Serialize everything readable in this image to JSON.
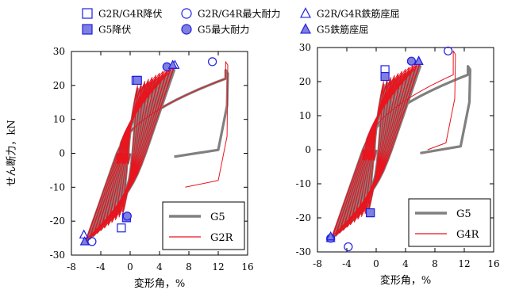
{
  "legend": {
    "items": [
      {
        "label": "G2R/G4R降伏",
        "marker": "square",
        "filled": false
      },
      {
        "label": "G2R/G4R最大耐力",
        "marker": "circle",
        "filled": false
      },
      {
        "label": "G2R/G4R鉄筋座屈",
        "marker": "triangle",
        "filled": false
      },
      {
        "label": "G5降伏",
        "marker": "square",
        "filled": true
      },
      {
        "label": "G5最大耐力",
        "marker": "circle",
        "filled": true
      },
      {
        "label": "G5鉄筋座屈",
        "marker": "triangle",
        "filled": true
      }
    ],
    "marker_color": "#1f1fe6",
    "marker_fill": "#7f7fe0"
  },
  "colors": {
    "G5": "#808080",
    "red": "#e8141e",
    "marker": "#1f1fe6"
  },
  "chart_data": [
    {
      "type": "line",
      "title": "",
      "xlabel": "変形角，%",
      "ylabel": "せん断力，kN",
      "xlim": [
        -8,
        16
      ],
      "ylim": [
        -30,
        30
      ],
      "xticks": [
        -8,
        -4,
        0,
        4,
        8,
        12,
        16
      ],
      "yticks": [
        -30,
        -20,
        -10,
        0,
        10,
        20,
        30
      ],
      "grid": false,
      "legend_position": "bottom-right",
      "series": [
        {
          "name": "G5",
          "color": "#808080",
          "amplitudes": [
            1,
            1.5,
            2,
            2.5,
            3,
            3.5,
            4,
            4.5,
            5,
            5.5,
            6
          ],
          "final_peak": [
            13,
            24.5
          ],
          "residual": [
            6,
            -1
          ]
        },
        {
          "name": "G2R",
          "color": "#e8141e",
          "amplitudes": [
            1,
            1.5,
            2,
            2.5,
            3,
            3.5,
            4,
            4.5,
            5,
            5.5,
            6
          ],
          "final_peak": [
            13,
            27
          ],
          "residual": [
            7.5,
            -10
          ]
        }
      ],
      "markers": [
        {
          "series": "G2R/G4R",
          "event": "降伏",
          "x": 0.8,
          "y": 21.5
        },
        {
          "series": "G2R/G4R",
          "event": "降伏",
          "x": -1.2,
          "y": -22
        },
        {
          "series": "G2R/G4R",
          "event": "最大耐力",
          "x": 11.2,
          "y": 27
        },
        {
          "series": "G2R/G4R",
          "event": "最大耐力",
          "x": -5.2,
          "y": -26
        },
        {
          "series": "G2R/G4R",
          "event": "鉄筋座屈",
          "x": 6.1,
          "y": 26
        },
        {
          "series": "G2R/G4R",
          "event": "鉄筋座屈",
          "x": -6.3,
          "y": -24
        },
        {
          "series": "G5",
          "event": "降伏",
          "x": 1,
          "y": 21.5
        },
        {
          "series": "G5",
          "event": "降伏",
          "x": -0.5,
          "y": -19
        },
        {
          "series": "G5",
          "event": "最大耐力",
          "x": 5,
          "y": 25.5
        },
        {
          "series": "G5",
          "event": "最大耐力",
          "x": -0.4,
          "y": -18.5
        },
        {
          "series": "G5",
          "event": "鉄筋座屈",
          "x": 5.8,
          "y": 26
        },
        {
          "series": "G5",
          "event": "鉄筋座屈",
          "x": -6.2,
          "y": -26
        }
      ]
    },
    {
      "type": "line",
      "title": "",
      "xlabel": "変形角，%",
      "ylabel": "",
      "xlim": [
        -8,
        16
      ],
      "ylim": [
        -30,
        30
      ],
      "xticks": [
        -8,
        -4,
        0,
        4,
        8,
        12,
        16
      ],
      "yticks": [
        -30,
        -20,
        -10,
        0,
        10,
        20,
        30
      ],
      "grid": false,
      "legend_position": "bottom-right",
      "series": [
        {
          "name": "G5",
          "color": "#808080",
          "amplitudes": [
            1,
            1.5,
            2,
            2.5,
            3,
            3.5,
            4,
            4.5,
            5,
            5.5,
            6
          ],
          "final_peak": [
            12.5,
            24.5
          ],
          "residual": [
            6,
            -1
          ]
        },
        {
          "name": "G4R",
          "color": "#e8141e",
          "amplitudes": [
            1,
            1.5,
            2,
            2.5,
            3,
            3.5,
            4,
            4.5,
            5,
            5.5,
            6
          ],
          "final_peak": [
            10.5,
            29
          ],
          "residual": [
            7,
            0
          ]
        }
      ],
      "markers": [
        {
          "series": "G2R/G4R",
          "event": "降伏",
          "x": 1.2,
          "y": 23.5
        },
        {
          "series": "G2R/G4R",
          "event": "降伏",
          "x": -0.8,
          "y": -18.5
        },
        {
          "series": "G2R/G4R",
          "event": "最大耐力",
          "x": 9.8,
          "y": 29
        },
        {
          "series": "G2R/G4R",
          "event": "最大耐力",
          "x": -3.8,
          "y": -28.5
        },
        {
          "series": "G2R/G4R",
          "event": "鉄筋座屈",
          "x": 5.8,
          "y": 26
        },
        {
          "series": "G2R/G4R",
          "event": "鉄筋座屈",
          "x": -6.2,
          "y": -26
        },
        {
          "series": "G5",
          "event": "降伏",
          "x": 1.2,
          "y": 21.5
        },
        {
          "series": "G5",
          "event": "降伏",
          "x": -0.8,
          "y": -18.5
        },
        {
          "series": "G5",
          "event": "最大耐力",
          "x": 4.8,
          "y": 26
        },
        {
          "series": "G5",
          "event": "最大耐力",
          "x": -6.2,
          "y": -26
        },
        {
          "series": "G5",
          "event": "鉄筋座屈",
          "x": 5.8,
          "y": 26
        },
        {
          "series": "G5",
          "event": "鉄筋座屈",
          "x": -6.2,
          "y": -25.5
        }
      ]
    }
  ]
}
